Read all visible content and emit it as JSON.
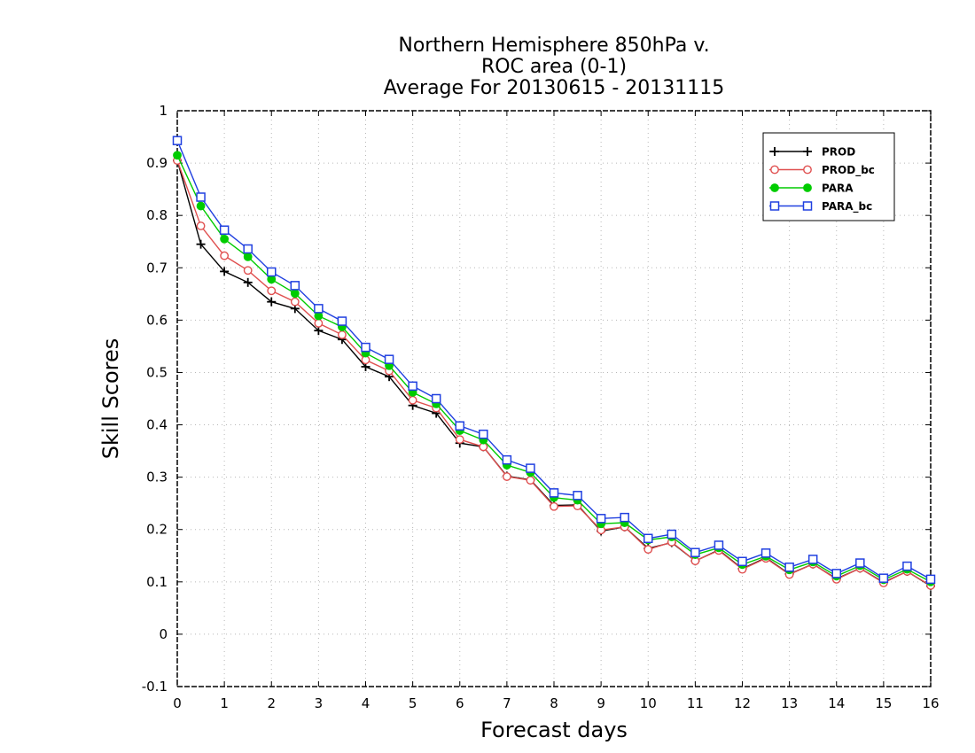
{
  "chart_data": {
    "type": "line",
    "title": [
      "Northern Hemisphere 850hPa v.",
      "ROC area (0-1)",
      "Average For 20130615 - 20131115"
    ],
    "xlabel": "Forecast days",
    "ylabel": "Skill Scores",
    "xlim": [
      0,
      16
    ],
    "ylim": [
      -0.1,
      1
    ],
    "x_ticks": [
      0,
      1,
      2,
      3,
      4,
      5,
      6,
      7,
      8,
      9,
      10,
      11,
      12,
      13,
      14,
      15,
      16
    ],
    "x_tick_labels": [
      "0",
      "1",
      "2",
      "3",
      "4",
      "5",
      "6",
      "7",
      "8",
      "9",
      "10",
      "11",
      "12",
      "13",
      "14",
      "15",
      "16"
    ],
    "y_ticks": [
      -0.1,
      0,
      0.1,
      0.2,
      0.3,
      0.4,
      0.5,
      0.6,
      0.7,
      0.8,
      0.9,
      1
    ],
    "y_tick_labels": [
      "-0.1",
      "0",
      "0.1",
      "0.2",
      "0.3",
      "0.4",
      "0.5",
      "0.6",
      "0.7",
      "0.8",
      "0.9",
      "1"
    ],
    "grid": true,
    "legend_position": "top-right",
    "x": [
      0,
      0.5,
      1,
      1.5,
      2,
      2.5,
      3,
      3.5,
      4,
      4.5,
      5,
      5.5,
      6,
      6.5,
      7,
      7.5,
      8,
      8.5,
      9,
      9.5,
      10,
      10.5,
      11,
      11.5,
      12,
      12.5,
      13,
      13.5,
      14,
      14.5,
      15,
      15.5,
      16
    ],
    "series": [
      {
        "name": "PROD",
        "color": "#000000",
        "marker": "plus",
        "values": [
          0.905,
          0.745,
          0.693,
          0.672,
          0.635,
          0.622,
          0.58,
          0.563,
          0.511,
          0.492,
          0.437,
          0.422,
          0.365,
          0.358,
          0.302,
          0.295,
          0.246,
          0.247,
          0.197,
          0.205,
          0.164,
          0.175,
          0.14,
          0.161,
          0.125,
          0.146,
          0.115,
          0.134,
          0.106,
          0.126,
          0.099,
          0.12,
          0.092
        ]
      },
      {
        "name": "PROD_bc",
        "color": "#e05050",
        "marker": "circle-open",
        "values": [
          0.905,
          0.78,
          0.723,
          0.695,
          0.656,
          0.635,
          0.594,
          0.572,
          0.524,
          0.503,
          0.447,
          0.432,
          0.372,
          0.358,
          0.301,
          0.294,
          0.244,
          0.245,
          0.199,
          0.205,
          0.162,
          0.176,
          0.14,
          0.16,
          0.124,
          0.145,
          0.114,
          0.134,
          0.105,
          0.126,
          0.098,
          0.12,
          0.093
        ]
      },
      {
        "name": "PARA",
        "color": "#00cc00",
        "marker": "circle-filled",
        "values": [
          0.915,
          0.818,
          0.755,
          0.721,
          0.678,
          0.651,
          0.608,
          0.587,
          0.537,
          0.513,
          0.462,
          0.44,
          0.389,
          0.371,
          0.323,
          0.309,
          0.261,
          0.256,
          0.211,
          0.213,
          0.18,
          0.186,
          0.152,
          0.165,
          0.133,
          0.149,
          0.123,
          0.138,
          0.111,
          0.131,
          0.104,
          0.124,
          0.1
        ]
      },
      {
        "name": "PARA_bc",
        "color": "#2040e0",
        "marker": "square-open",
        "values": [
          0.943,
          0.835,
          0.772,
          0.736,
          0.692,
          0.666,
          0.622,
          0.598,
          0.548,
          0.525,
          0.474,
          0.45,
          0.398,
          0.382,
          0.333,
          0.317,
          0.27,
          0.265,
          0.221,
          0.223,
          0.183,
          0.191,
          0.156,
          0.17,
          0.139,
          0.155,
          0.128,
          0.143,
          0.116,
          0.136,
          0.107,
          0.13,
          0.105
        ]
      }
    ]
  }
}
